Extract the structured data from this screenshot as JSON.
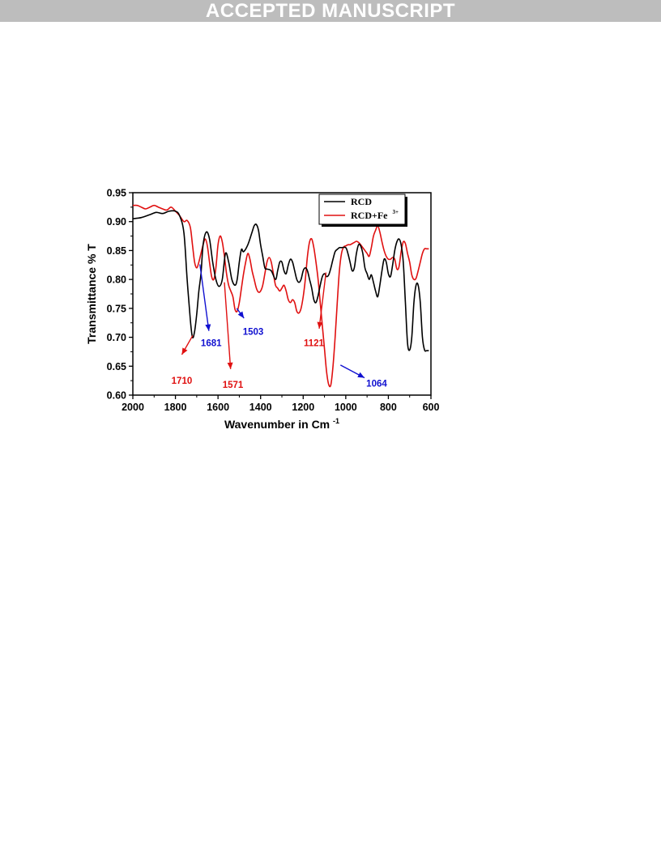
{
  "banner": {
    "text": "ACCEPTED MANUSCRIPT"
  },
  "chart_data": {
    "type": "line",
    "xlabel": "Wavenumber in Cm",
    "xlabel_sup": "-1",
    "ylabel": "Transmittance % T",
    "xlim": [
      2000,
      600
    ],
    "ylim": [
      0.6,
      0.95
    ],
    "xticks": [
      2000,
      1800,
      1600,
      1400,
      1200,
      1000,
      800,
      600
    ],
    "yticks": [
      "0.95",
      "0.90",
      "0.85",
      "0.80",
      "0.75",
      "0.70",
      "0.65",
      "0.60"
    ],
    "legend_position": "top-right",
    "series": [
      {
        "name": "RCD",
        "color": "#000000",
        "x": [
          2000,
          1960,
          1920,
          1890,
          1860,
          1830,
          1800,
          1780,
          1760,
          1745,
          1730,
          1720,
          1710,
          1700,
          1690,
          1680,
          1670,
          1655,
          1640,
          1625,
          1610,
          1595,
          1580,
          1565,
          1550,
          1535,
          1520,
          1510,
          1500,
          1490,
          1480,
          1460,
          1440,
          1430,
          1420,
          1410,
          1400,
          1390,
          1380,
          1370,
          1350,
          1330,
          1320,
          1310,
          1300,
          1290,
          1280,
          1270,
          1260,
          1250,
          1240,
          1230,
          1220,
          1210,
          1200,
          1190,
          1180,
          1170,
          1160,
          1150,
          1140,
          1130,
          1120,
          1110,
          1100,
          1090,
          1080,
          1070,
          1060,
          1050,
          1040,
          1030,
          1020,
          1000,
          990,
          980,
          970,
          960,
          950,
          940,
          930,
          920,
          910,
          900,
          890,
          880,
          870,
          860,
          850,
          840,
          830,
          820,
          810,
          800,
          790,
          780,
          770,
          760,
          750,
          740,
          730,
          720,
          710,
          700,
          690,
          680,
          670,
          660,
          650,
          640,
          630,
          620,
          610
        ],
        "y": [
          0.905,
          0.907,
          0.912,
          0.916,
          0.914,
          0.918,
          0.918,
          0.91,
          0.88,
          0.8,
          0.73,
          0.7,
          0.71,
          0.74,
          0.78,
          0.81,
          0.86,
          0.882,
          0.87,
          0.83,
          0.8,
          0.788,
          0.8,
          0.845,
          0.83,
          0.8,
          0.79,
          0.8,
          0.83,
          0.852,
          0.848,
          0.86,
          0.882,
          0.893,
          0.895,
          0.885,
          0.86,
          0.84,
          0.82,
          0.818,
          0.815,
          0.8,
          0.815,
          0.83,
          0.83,
          0.815,
          0.81,
          0.825,
          0.835,
          0.83,
          0.815,
          0.8,
          0.795,
          0.8,
          0.815,
          0.82,
          0.815,
          0.8,
          0.785,
          0.765,
          0.76,
          0.772,
          0.79,
          0.805,
          0.81,
          0.805,
          0.808,
          0.82,
          0.835,
          0.848,
          0.852,
          0.855,
          0.855,
          0.855,
          0.845,
          0.83,
          0.815,
          0.82,
          0.845,
          0.86,
          0.858,
          0.845,
          0.82,
          0.81,
          0.8,
          0.808,
          0.795,
          0.78,
          0.77,
          0.79,
          0.815,
          0.835,
          0.83,
          0.81,
          0.805,
          0.825,
          0.85,
          0.865,
          0.87,
          0.86,
          0.83,
          0.76,
          0.69,
          0.678,
          0.7,
          0.76,
          0.79,
          0.79,
          0.76,
          0.7,
          0.678,
          0.677,
          0.677
        ]
      },
      {
        "name": "RCD+Fe",
        "name_sup": "3+",
        "color": "#e01010",
        "x": [
          2000,
          1980,
          1960,
          1940,
          1920,
          1900,
          1880,
          1860,
          1840,
          1820,
          1800,
          1780,
          1760,
          1745,
          1730,
          1720,
          1710,
          1700,
          1690,
          1680,
          1670,
          1660,
          1650,
          1640,
          1630,
          1620,
          1610,
          1600,
          1590,
          1580,
          1570,
          1560,
          1550,
          1540,
          1530,
          1520,
          1510,
          1500,
          1490,
          1480,
          1470,
          1460,
          1450,
          1440,
          1430,
          1420,
          1410,
          1400,
          1390,
          1380,
          1370,
          1360,
          1350,
          1340,
          1330,
          1320,
          1310,
          1300,
          1290,
          1280,
          1270,
          1260,
          1250,
          1240,
          1230,
          1220,
          1210,
          1200,
          1190,
          1180,
          1170,
          1160,
          1150,
          1140,
          1130,
          1120,
          1110,
          1100,
          1090,
          1080,
          1070,
          1060,
          1050,
          1040,
          1030,
          1020,
          1010,
          1000,
          990,
          980,
          970,
          960,
          950,
          940,
          930,
          920,
          910,
          900,
          890,
          880,
          870,
          860,
          850,
          840,
          830,
          820,
          810,
          800,
          790,
          780,
          770,
          760,
          750,
          740,
          730,
          720,
          710,
          700,
          690,
          680,
          670,
          660,
          650,
          640,
          630,
          620,
          610
        ],
        "y": [
          0.928,
          0.928,
          0.925,
          0.922,
          0.925,
          0.928,
          0.925,
          0.922,
          0.92,
          0.925,
          0.918,
          0.91,
          0.9,
          0.902,
          0.89,
          0.86,
          0.83,
          0.82,
          0.83,
          0.845,
          0.86,
          0.87,
          0.858,
          0.83,
          0.805,
          0.8,
          0.82,
          0.86,
          0.875,
          0.865,
          0.84,
          0.81,
          0.79,
          0.78,
          0.77,
          0.748,
          0.745,
          0.76,
          0.785,
          0.81,
          0.83,
          0.845,
          0.835,
          0.815,
          0.8,
          0.785,
          0.778,
          0.78,
          0.79,
          0.81,
          0.83,
          0.838,
          0.83,
          0.81,
          0.79,
          0.785,
          0.78,
          0.785,
          0.79,
          0.78,
          0.765,
          0.76,
          0.765,
          0.76,
          0.745,
          0.742,
          0.75,
          0.77,
          0.8,
          0.84,
          0.865,
          0.87,
          0.855,
          0.83,
          0.8,
          0.76,
          0.72,
          0.68,
          0.64,
          0.618,
          0.618,
          0.65,
          0.7,
          0.76,
          0.815,
          0.845,
          0.856,
          0.858,
          0.86,
          0.86,
          0.862,
          0.864,
          0.866,
          0.864,
          0.86,
          0.855,
          0.85,
          0.845,
          0.84,
          0.855,
          0.875,
          0.885,
          0.893,
          0.882,
          0.865,
          0.85,
          0.84,
          0.835,
          0.835,
          0.838,
          0.835,
          0.818,
          0.822,
          0.848,
          0.865,
          0.862,
          0.845,
          0.83,
          0.808,
          0.8,
          0.802,
          0.815,
          0.83,
          0.845,
          0.853,
          0.853,
          0.853
        ]
      }
    ],
    "annotations": [
      {
        "text": "1681",
        "color": "#1010d0",
        "label_x": 1632,
        "label_y": 0.69,
        "tail_x": 1685,
        "tail_y": 0.826,
        "head_x": 1643,
        "head_y": 0.711
      },
      {
        "text": "1503",
        "color": "#1010d0",
        "label_x": 1435,
        "label_y": 0.71,
        "tail_x": 1512,
        "tail_y": 0.75,
        "head_x": 1478,
        "head_y": 0.733
      },
      {
        "text": "1064",
        "color": "#1010d0",
        "label_x": 855,
        "label_y": 0.62,
        "tail_x": 1025,
        "tail_y": 0.652,
        "head_x": 912,
        "head_y": 0.63
      },
      {
        "text": "1710",
        "color": "#e01010",
        "label_x": 1770,
        "label_y": 0.625,
        "tail_x": 1719,
        "tail_y": 0.703,
        "head_x": 1770,
        "head_y": 0.67
      },
      {
        "text": "1571",
        "color": "#e01010",
        "label_x": 1530,
        "label_y": 0.618,
        "tail_x": 1570,
        "tail_y": 0.795,
        "head_x": 1541,
        "head_y": 0.645
      },
      {
        "text": "1121",
        "color": "#e01010",
        "label_x": 1150,
        "label_y": 0.69,
        "tail_x": 1093,
        "tail_y": 0.812,
        "head_x": 1125,
        "head_y": 0.715
      }
    ]
  }
}
